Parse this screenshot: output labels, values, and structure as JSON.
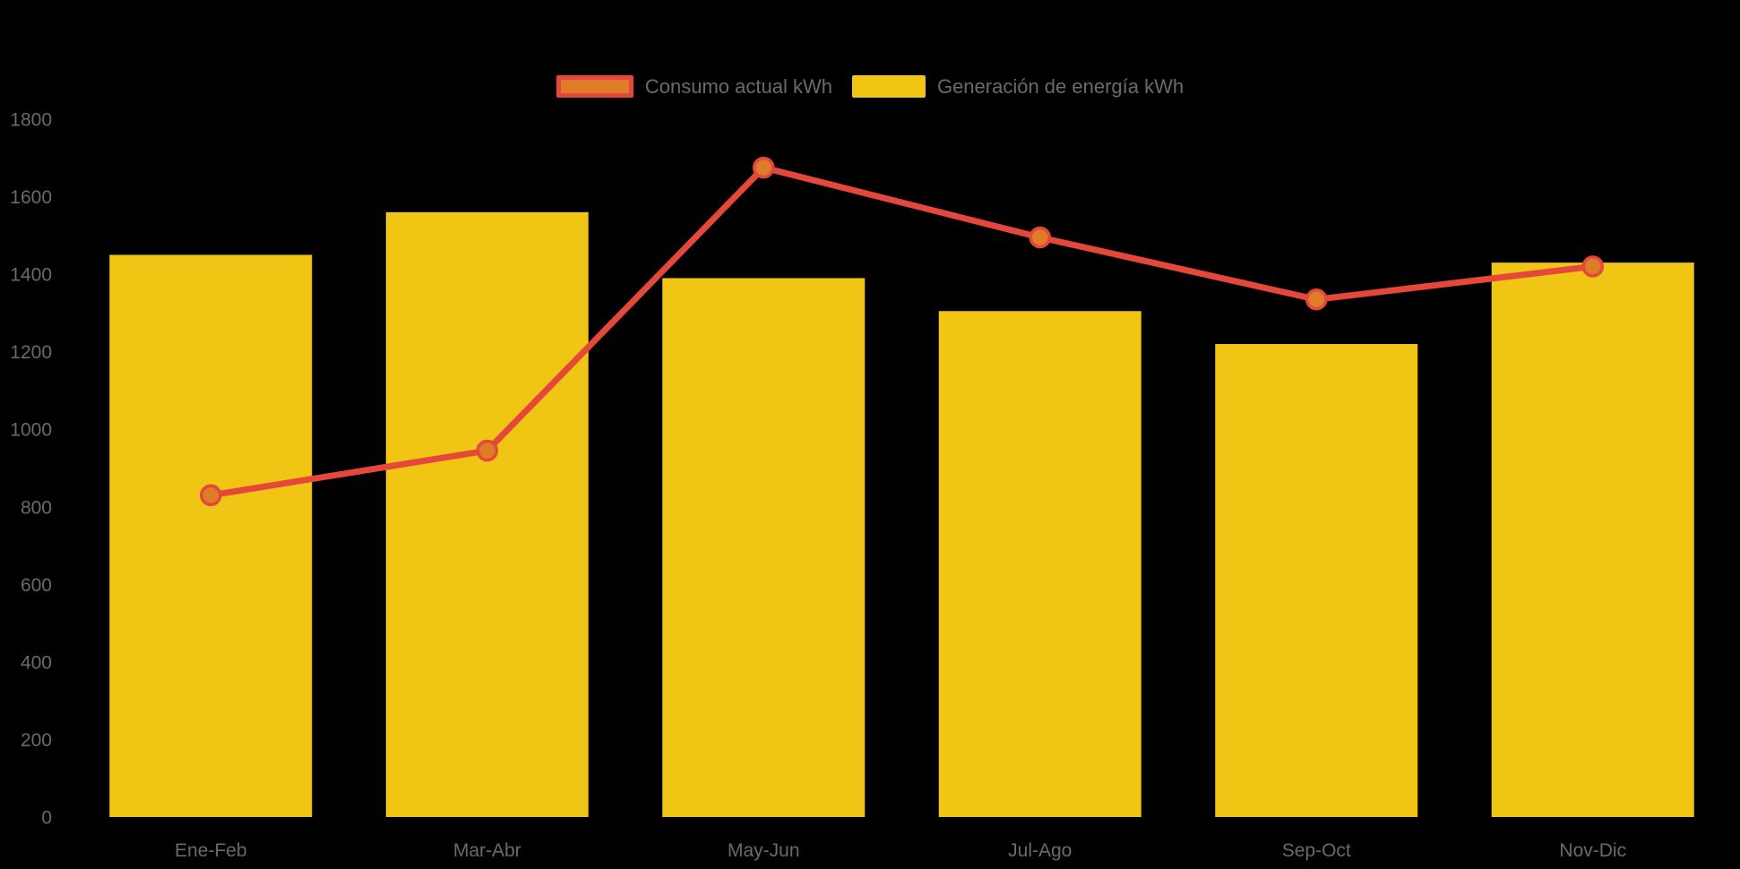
{
  "colors": {
    "background": "#000000",
    "bar_fill": "#F0C513",
    "line_stroke": "#E5473B",
    "marker_fill": "#DF7C28",
    "marker_stroke": "#E5473B",
    "axis_text": "#6A6A6A",
    "legend_text": "#6A6A6A"
  },
  "legend": {
    "items": [
      {
        "label": "Consumo actual kWh",
        "swatch": "line-series"
      },
      {
        "label": "Generación de energía kWh",
        "swatch": "bar-series"
      }
    ]
  },
  "chart_data": {
    "type": "bar",
    "subtype": "column chart with overlaid line series",
    "title": "",
    "xlabel": "",
    "ylabel": "",
    "grid": false,
    "legend_position": "top-center",
    "categories": [
      "Ene-Feb",
      "Mar-Abr",
      "May-Jun",
      "Jul-Ago",
      "Sep-Oct",
      "Nov-Dic"
    ],
    "series": [
      {
        "name": "Generación de energía kWh",
        "type": "bar",
        "values": [
          1450,
          1560,
          1390,
          1305,
          1220,
          1430
        ]
      },
      {
        "name": "Consumo actual kWh",
        "type": "line",
        "values": [
          830,
          945,
          1675,
          1495,
          1335,
          1420
        ]
      }
    ],
    "y_axis": {
      "min": 0,
      "max": 1800,
      "tick_step": 200,
      "tick_labels": [
        "0",
        "200",
        "400",
        "600",
        "800",
        "1000",
        "1200",
        "1400",
        "1600",
        "1800"
      ]
    }
  }
}
